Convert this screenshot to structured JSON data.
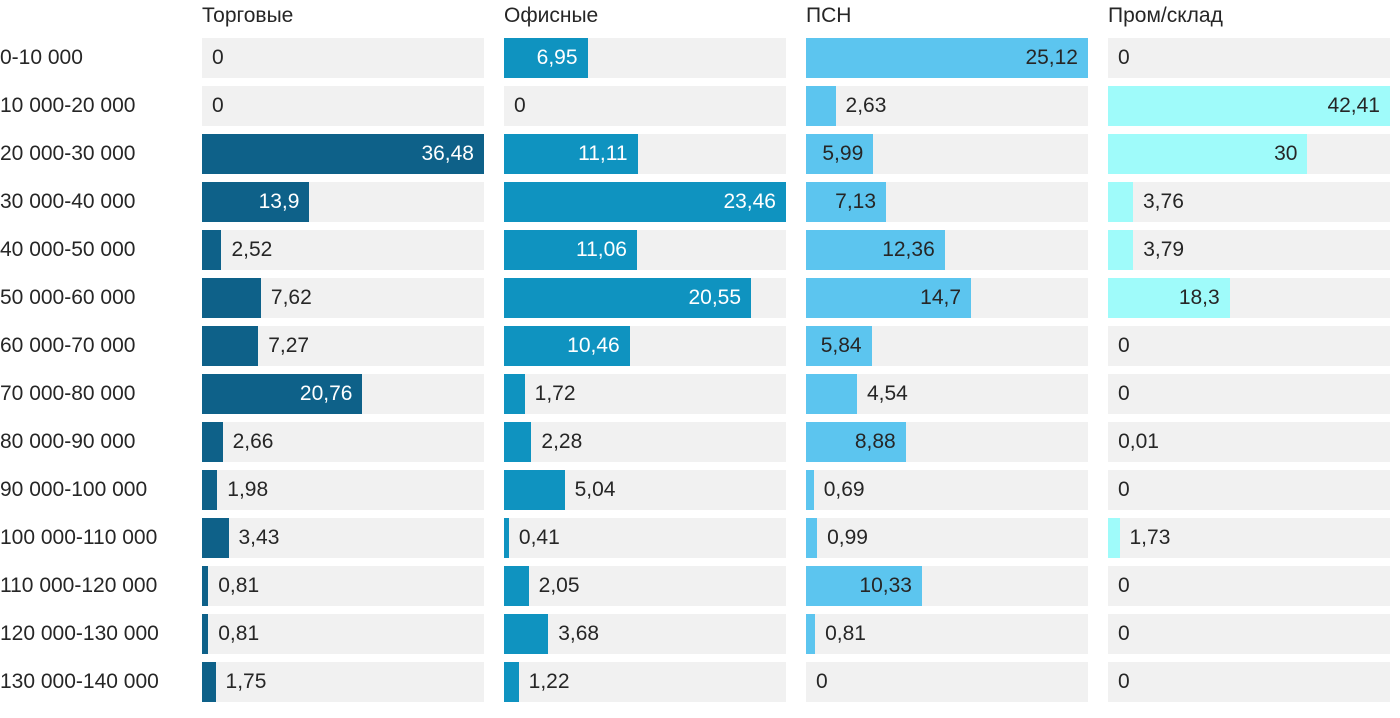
{
  "chart_data": {
    "type": "bar",
    "orientation": "horizontal",
    "layout": "small-multiples, one column per series, bars scaled to each series own max",
    "track_color": "#f1f1f1",
    "text_color": "#262626",
    "value_decimal_separator": ",",
    "categories": [
      "0-10 000",
      "10 000-20 000",
      "20 000-30 000",
      "30 000-40 000",
      "40 000-50 000",
      "50 000-60 000",
      "60 000-70 000",
      "70 000-80 000",
      "80 000-90 000",
      "90 000-100 000",
      "100 000-110 000",
      "110 000-120 000",
      "120 000-130 000",
      "130 000-140 000"
    ],
    "series": [
      {
        "name": "Торговые",
        "color": "#0e6189",
        "inside_label_color": "#ffffff",
        "values": [
          0,
          0,
          36.48,
          13.9,
          2.52,
          7.62,
          7.27,
          20.76,
          2.66,
          1.98,
          3.43,
          0.81,
          0.81,
          1.75
        ],
        "labels": [
          "0",
          "0",
          "36,48",
          "13,9",
          "2,52",
          "7,62",
          "7,27",
          "20,76",
          "2,66",
          "1,98",
          "3,43",
          "0,81",
          "0,81",
          "1,75"
        ],
        "label_inside": [
          false,
          false,
          true,
          true,
          false,
          false,
          false,
          true,
          false,
          false,
          false,
          false,
          false,
          false
        ]
      },
      {
        "name": "Офисные",
        "color": "#0f93c0",
        "inside_label_color": "#ffffff",
        "values": [
          6.95,
          0,
          11.11,
          23.46,
          11.06,
          20.55,
          10.46,
          1.72,
          2.28,
          5.04,
          0.41,
          2.05,
          3.68,
          1.22
        ],
        "labels": [
          "6,95",
          "0",
          "11,11",
          "23,46",
          "11,06",
          "20,55",
          "10,46",
          "1,72",
          "2,28",
          "5,04",
          "0,41",
          "2,05",
          "3,68",
          "1,22"
        ],
        "label_inside": [
          true,
          false,
          true,
          true,
          true,
          true,
          true,
          false,
          false,
          false,
          false,
          false,
          false,
          false
        ]
      },
      {
        "name": "ПСН",
        "color": "#5cc5ef",
        "inside_label_color": "#262626",
        "values": [
          25.12,
          2.63,
          5.99,
          7.13,
          12.36,
          14.7,
          5.84,
          4.54,
          8.88,
          0.69,
          0.99,
          10.33,
          0.81,
          0
        ],
        "labels": [
          "25,12",
          "2,63",
          "5,99",
          "7,13",
          "12,36",
          "14,7",
          "5,84",
          "4,54",
          "8,88",
          "0,69",
          "0,99",
          "10,33",
          "0,81",
          "0"
        ],
        "label_inside": [
          true,
          false,
          true,
          true,
          true,
          true,
          true,
          false,
          true,
          false,
          false,
          true,
          false,
          false
        ]
      },
      {
        "name": "Пром/склад",
        "color": "#9ffbfa",
        "inside_label_color": "#262626",
        "values": [
          0,
          42.41,
          30,
          3.76,
          3.79,
          18.3,
          0,
          0,
          0.01,
          0,
          1.73,
          0,
          0,
          0
        ],
        "labels": [
          "0",
          "42,41",
          "30",
          "3,76",
          "3,79",
          "18,3",
          "0",
          "0",
          "0,01",
          "0",
          "1,73",
          "0",
          "0",
          "0"
        ],
        "label_inside": [
          false,
          true,
          true,
          false,
          false,
          true,
          false,
          false,
          false,
          false,
          false,
          false,
          false,
          false
        ]
      }
    ]
  }
}
